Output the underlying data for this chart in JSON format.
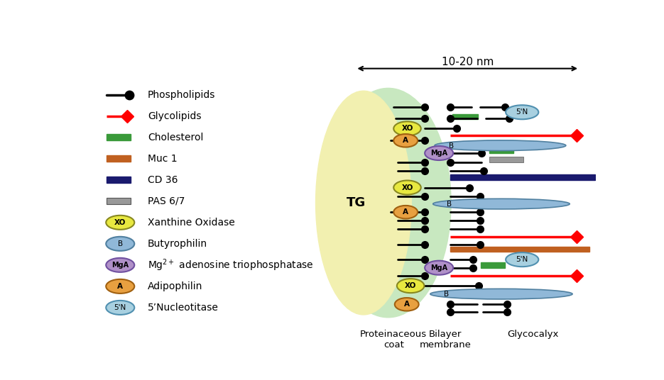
{
  "bg_color": "#ffffff",
  "tg_color": "#f2f0b0",
  "coat_color": "#c8e8c0",
  "title": "10-20 nm",
  "label_proteinaceous": "Proteinaceous\ncoat",
  "label_bilayer": "Bilayer\nmembrane",
  "label_glycocalyx": "Glycocalyx",
  "label_tg": "TG",
  "xo_fill": "#e8e840",
  "xo_edge": "#888820",
  "a_fill": "#e8a040",
  "a_edge": "#a06010",
  "b_fill": "#90b8d8",
  "b_edge": "#5080a0",
  "mga_fill": "#b090c8",
  "mga_edge": "#7050a0",
  "n5_fill": "#a8d0e0",
  "n5_edge": "#5090b0",
  "green": "#3a9a3a",
  "muc1_color": "#c06020",
  "cd36_color": "#1a1a6e",
  "pas_color": "#999999",
  "legend_items": [
    {
      "label": "Phospholipids"
    },
    {
      "label": "Glycolipids"
    },
    {
      "label": "Cholesterol"
    },
    {
      "label": "Muc 1"
    },
    {
      "label": "CD 36"
    },
    {
      "label": "PAS 6/7"
    },
    {
      "label": "Xanthine Oxidase"
    },
    {
      "label": "Butyrophilin"
    },
    {
      "label": "Mg²⁺ adenosine triophosphatase"
    },
    {
      "label": "Adipophilin"
    },
    {
      "label": "5’Nucleotitase"
    }
  ]
}
